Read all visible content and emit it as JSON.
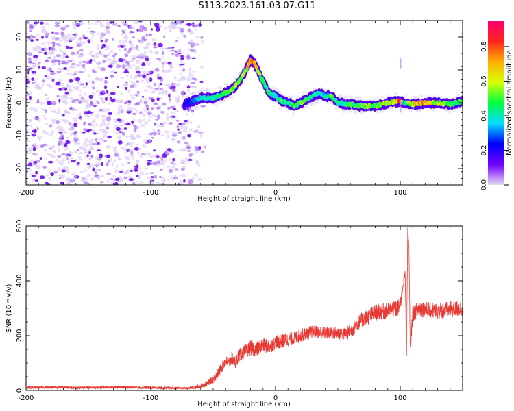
{
  "title": "S113.2023.161.03.07.G11",
  "colors": {
    "snr_line": "#e83a35",
    "spectral_core": "#5500ee",
    "colorbar_stops": [
      "#e8d8f4",
      "#7000ff",
      "#0000ff",
      "#00e0ff",
      "#00ff40",
      "#d8ff00",
      "#ffb000",
      "#ff2020",
      "#ff0070"
    ]
  },
  "chart_data": [
    {
      "type": "heatmap",
      "id": "spectrogram",
      "xlabel": "Height of straight line (km)",
      "ylabel": "Frequency (Hz)",
      "xlim": [
        -200,
        150
      ],
      "ylim": [
        -25,
        25
      ],
      "x_ticks": [
        -200,
        -100,
        0,
        100
      ],
      "y_ticks": [
        -20,
        -10,
        0,
        10,
        20
      ],
      "colorbar": {
        "label": "Normalized spectral amplitude",
        "range": [
          0,
          0.95
        ],
        "ticks": [
          0.0,
          0.2,
          0.4,
          0.6,
          0.8
        ]
      },
      "noise_region_x": [
        -200,
        -55
      ],
      "ridge": {
        "x": [
          -73,
          -60,
          -50,
          -40,
          -35,
          -30,
          -25,
          -20,
          -17,
          -12,
          -8,
          -5,
          0,
          5,
          10,
          15,
          20,
          30,
          35,
          40,
          45,
          50,
          60,
          70,
          80,
          90,
          100,
          103,
          110,
          120,
          130,
          140,
          150
        ],
        "freq": [
          -0.5,
          1.5,
          1.5,
          3,
          4,
          6,
          9,
          13,
          12,
          8,
          5,
          3,
          2,
          0.5,
          0,
          -1,
          0,
          2,
          3,
          2,
          2,
          0,
          -0.5,
          -1,
          -1,
          0,
          0.5,
          0,
          -0.5,
          0,
          0,
          -0.5,
          0.5
        ],
        "amplitude": [
          0.2,
          0.4,
          0.45,
          0.5,
          0.55,
          0.6,
          0.55,
          0.8,
          0.75,
          0.55,
          0.45,
          0.5,
          0.4,
          0.5,
          0.45,
          0.5,
          0.55,
          0.45,
          0.4,
          0.4,
          0.5,
          0.45,
          0.5,
          0.55,
          0.6,
          0.55,
          0.85,
          0.4,
          0.7,
          0.75,
          0.6,
          0.55,
          0.5
        ]
      }
    },
    {
      "type": "line",
      "id": "snr",
      "xlabel": "Height of straight line (km)",
      "ylabel": "SNR (10 * v/v)",
      "xlim": [
        -200,
        150
      ],
      "ylim": [
        0,
        600
      ],
      "x_ticks": [
        -200,
        -100,
        0,
        100
      ],
      "y_ticks": [
        0,
        200,
        400,
        600
      ],
      "series": [
        {
          "x": [
            -200,
            -180,
            -160,
            -140,
            -120,
            -100,
            -80,
            -70,
            -60,
            -55,
            -50,
            -45,
            -40,
            -38,
            -35,
            -32,
            -30,
            -25,
            -20,
            -15,
            -10,
            -5,
            0,
            10,
            20,
            30,
            40,
            50,
            55,
            60,
            65,
            70,
            75,
            80,
            90,
            98,
            100,
            102,
            104,
            105,
            106,
            107,
            108,
            110,
            115,
            120,
            130,
            140,
            150
          ],
          "y": [
            10,
            12,
            10,
            11,
            12,
            10,
            9,
            8,
            15,
            25,
            40,
            70,
            110,
            95,
            120,
            100,
            125,
            140,
            155,
            150,
            165,
            160,
            175,
            185,
            200,
            215,
            210,
            210,
            205,
            215,
            240,
            260,
            270,
            285,
            290,
            300,
            310,
            380,
            430,
            110,
            590,
            520,
            150,
            280,
            300,
            295,
            290,
            295,
            300
          ],
          "noise": [
            5,
            5,
            5,
            5,
            5,
            5,
            5,
            5,
            8,
            10,
            14,
            18,
            22,
            22,
            24,
            24,
            24,
            26,
            28,
            28,
            28,
            26,
            26,
            26,
            24,
            24,
            24,
            24,
            24,
            26,
            28,
            28,
            30,
            30,
            30,
            32,
            32,
            20,
            10,
            10,
            10,
            10,
            20,
            30,
            30,
            30,
            30,
            30,
            30
          ]
        }
      ]
    }
  ]
}
